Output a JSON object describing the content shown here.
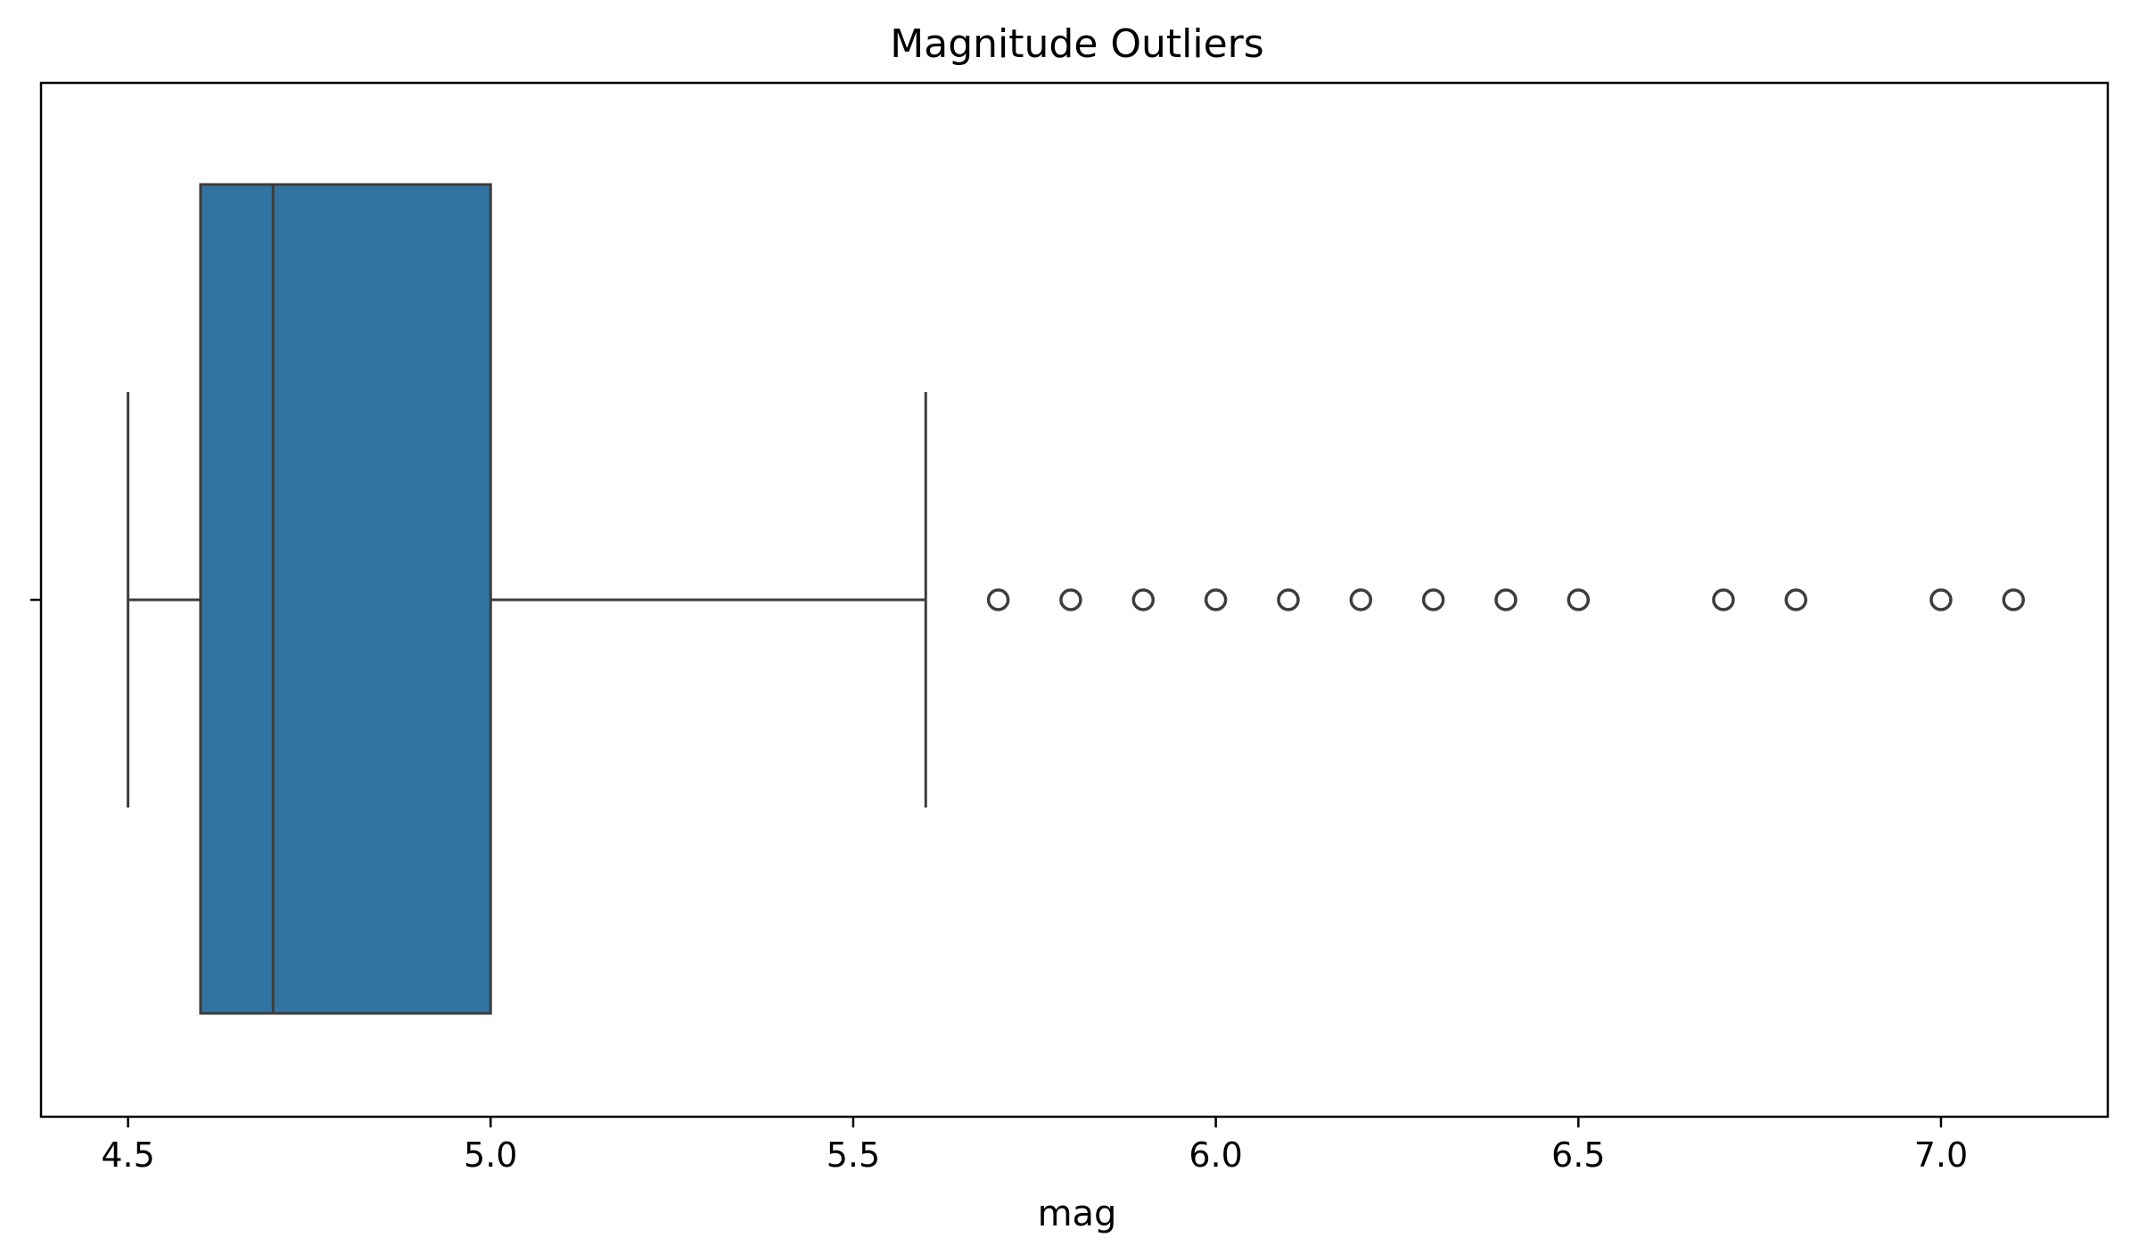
{
  "chart_data": {
    "type": "box",
    "orientation": "horizontal",
    "title": "Magnitude Outliers",
    "xlabel": "mag",
    "ylabel": "",
    "xlim": [
      4.38,
      7.23
    ],
    "xticks": [
      4.5,
      5.0,
      5.5,
      6.0,
      6.5,
      7.0
    ],
    "xtick_labels": [
      "4.5",
      "5.0",
      "5.5",
      "6.0",
      "6.5",
      "7.0"
    ],
    "grid": false,
    "box": {
      "whisker_low": 4.5,
      "q1": 4.6,
      "median": 4.7,
      "q3": 5.0,
      "whisker_high": 5.6,
      "outliers": [
        5.7,
        5.8,
        5.9,
        6.0,
        6.1,
        6.2,
        6.3,
        6.4,
        6.5,
        6.7,
        6.8,
        7.0,
        7.1
      ]
    },
    "colors": {
      "box_fill": "#3274a1",
      "line": "#3d3d3d",
      "outlier_edge": "#3d3d3d"
    }
  }
}
